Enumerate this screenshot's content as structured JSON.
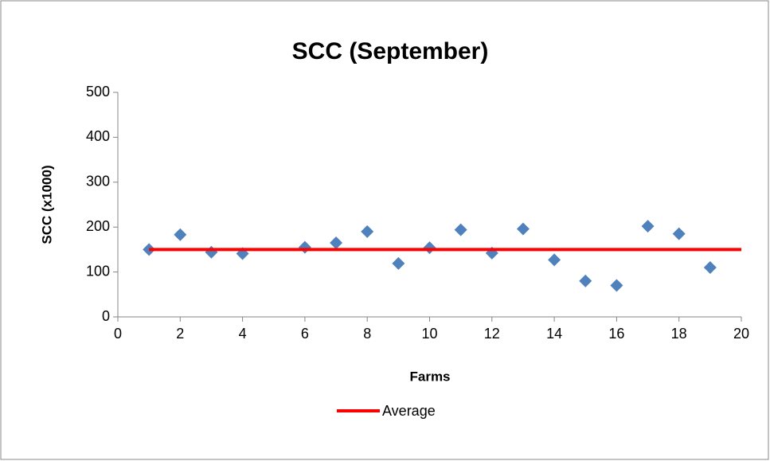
{
  "chart_data": {
    "type": "scatter",
    "title": "SCC (September)",
    "x_label": "Farms",
    "y_label": "SCC (x1000)",
    "xlim": [
      0,
      20
    ],
    "xticks": [
      0,
      2,
      4,
      6,
      8,
      10,
      12,
      14,
      16,
      18,
      20
    ],
    "ylim": [
      0,
      500
    ],
    "yticks": [
      0,
      100,
      200,
      300,
      400,
      500
    ],
    "series": [
      {
        "type": "scatter",
        "color": "#4f81bd",
        "x": [
          1,
          2,
          3,
          4,
          6,
          7,
          8,
          9,
          10,
          11,
          12,
          13,
          14,
          15,
          16,
          17,
          18,
          19
        ],
        "values": [
          150,
          183,
          144,
          141,
          155,
          165,
          190,
          119,
          154,
          194,
          142,
          196,
          127,
          80,
          70,
          202,
          185,
          110
        ]
      },
      {
        "type": "line",
        "name": "Average",
        "color": "#ff0000",
        "x": [
          1,
          20
        ],
        "values": [
          150,
          150
        ]
      }
    ],
    "legend": "bottom"
  }
}
